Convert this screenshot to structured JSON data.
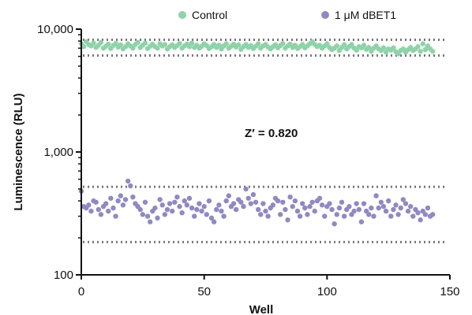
{
  "chart_data": {
    "type": "scatter",
    "title": "",
    "xlabel": "Well",
    "ylabel": "Luminescence (RLU)",
    "xlim": [
      0,
      150
    ],
    "ylim": [
      100,
      10000
    ],
    "yscale": "log",
    "x_ticks": [
      "0",
      "50",
      "100",
      "150"
    ],
    "y_ticks": [
      "100",
      "1,000",
      "10,000"
    ],
    "legend_position": "top-center",
    "annotation": "Z′ = 0.820",
    "colors": {
      "control": "#8fd3a8",
      "dbet1": "#9089c2",
      "threshold": "#777777",
      "axis": "#111111"
    },
    "thresholds": [
      8200,
      6100,
      520,
      185
    ],
    "series": [
      {
        "name": "Control",
        "x": [
          0,
          1,
          2,
          3,
          4,
          5,
          6,
          7,
          8,
          9,
          10,
          11,
          12,
          13,
          14,
          15,
          16,
          17,
          18,
          19,
          20,
          21,
          22,
          23,
          24,
          25,
          26,
          27,
          28,
          29,
          30,
          31,
          32,
          33,
          34,
          35,
          36,
          37,
          38,
          39,
          40,
          41,
          42,
          43,
          44,
          45,
          46,
          47,
          48,
          49,
          50,
          51,
          52,
          53,
          54,
          55,
          56,
          57,
          58,
          59,
          60,
          61,
          62,
          63,
          64,
          65,
          66,
          67,
          68,
          69,
          70,
          71,
          72,
          73,
          74,
          75,
          76,
          77,
          78,
          79,
          80,
          81,
          82,
          83,
          84,
          85,
          86,
          87,
          88,
          89,
          90,
          91,
          92,
          93,
          94,
          95,
          96,
          97,
          98,
          99,
          100,
          101,
          102,
          103,
          104,
          105,
          106,
          107,
          108,
          109,
          110,
          111,
          112,
          113,
          114,
          115,
          116,
          117,
          118,
          119,
          120,
          121,
          122,
          123,
          124,
          125,
          126,
          127,
          128,
          129,
          130,
          131,
          132,
          133,
          134,
          135,
          136,
          137,
          138,
          139,
          140,
          141,
          142,
          143
        ],
        "y": [
          7600,
          7200,
          7900,
          7500,
          7300,
          7700,
          7100,
          7400,
          7800,
          7000,
          7250,
          7550,
          6950,
          7350,
          7650,
          7150,
          7450,
          6900,
          7200,
          7600,
          7300,
          7000,
          7500,
          7800,
          7100,
          7400,
          7700,
          6950,
          7250,
          7550,
          7200,
          7000,
          7600,
          7300,
          7500,
          6900,
          7200,
          7450,
          7100,
          7350,
          7650,
          7000,
          7300,
          7550,
          7200,
          7700,
          7100,
          7400,
          7000,
          7250,
          7600,
          7350,
          6950,
          7200,
          7500,
          7100,
          7400,
          6900,
          7300,
          7600,
          7000,
          7250,
          7550,
          7150,
          7450,
          6850,
          7200,
          7500,
          7100,
          7350,
          6950,
          7250,
          7600,
          7000,
          7300,
          7500,
          7150,
          6900,
          7200,
          7450,
          7050,
          7350,
          7650,
          7000,
          7300,
          7550,
          7100,
          7400,
          6950,
          7200,
          7500,
          7050,
          7300,
          7600,
          7900,
          7500,
          7200,
          7400,
          7000,
          7300,
          7600,
          7100,
          6800,
          7000,
          7300,
          6700,
          7100,
          7450,
          6900,
          7200,
          7500,
          7000,
          6750,
          7200,
          7050,
          7400,
          6850,
          7100,
          6600,
          7000,
          7300,
          6900,
          6700,
          7050,
          6500,
          6900,
          6750,
          7050,
          6550,
          6300,
          6700,
          6900,
          6500,
          6800,
          7100,
          6700,
          6900,
          7200,
          6600,
          7600,
          6800,
          7300,
          6900,
          6600
        ],
        "color": "#8fd3a8"
      },
      {
        "name": "1 μM dBET1",
        "x": [
          0,
          1,
          2,
          3,
          4,
          5,
          6,
          7,
          8,
          9,
          10,
          11,
          12,
          13,
          14,
          15,
          16,
          17,
          18,
          19,
          20,
          21,
          22,
          23,
          24,
          25,
          26,
          27,
          28,
          29,
          30,
          31,
          32,
          33,
          34,
          35,
          36,
          37,
          38,
          39,
          40,
          41,
          42,
          43,
          44,
          45,
          46,
          47,
          48,
          49,
          50,
          51,
          52,
          53,
          54,
          55,
          56,
          57,
          58,
          59,
          60,
          61,
          62,
          63,
          64,
          65,
          66,
          67,
          68,
          69,
          70,
          71,
          72,
          73,
          74,
          75,
          76,
          77,
          78,
          79,
          80,
          81,
          82,
          83,
          84,
          85,
          86,
          87,
          88,
          89,
          90,
          91,
          92,
          93,
          94,
          95,
          96,
          97,
          98,
          99,
          100,
          101,
          102,
          103,
          104,
          105,
          106,
          107,
          108,
          109,
          110,
          111,
          112,
          113,
          114,
          115,
          116,
          117,
          118,
          119,
          120,
          121,
          122,
          123,
          124,
          125,
          126,
          127,
          128,
          129,
          130,
          131,
          132,
          133,
          134,
          135,
          136,
          137,
          138,
          139,
          140,
          141,
          142,
          143
        ],
        "y": [
          480,
          360,
          350,
          370,
          330,
          400,
          390,
          340,
          310,
          360,
          380,
          330,
          420,
          350,
          300,
          400,
          440,
          370,
          410,
          580,
          530,
          430,
          380,
          360,
          340,
          310,
          390,
          300,
          270,
          330,
          350,
          290,
          410,
          370,
          310,
          340,
          380,
          330,
          390,
          430,
          360,
          320,
          400,
          370,
          420,
          350,
          300,
          340,
          380,
          330,
          360,
          310,
          400,
          290,
          270,
          340,
          370,
          330,
          300,
          400,
          440,
          360,
          380,
          340,
          410,
          390,
          360,
          500,
          420,
          380,
          450,
          390,
          340,
          310,
          380,
          330,
          300,
          350,
          370,
          420,
          400,
          310,
          390,
          340,
          280,
          430,
          360,
          400,
          330,
          300,
          380,
          350,
          310,
          360,
          390,
          330,
          400,
          420,
          370,
          300,
          360,
          380,
          340,
          260,
          310,
          350,
          390,
          300,
          340,
          360,
          310,
          330,
          380,
          340,
          270,
          380,
          330,
          310,
          350,
          300,
          440,
          350,
          390,
          360,
          330,
          400,
          300,
          340,
          370,
          310,
          350,
          410,
          380,
          330,
          360,
          300,
          340,
          320,
          280,
          330,
          310,
          350,
          300,
          310
        ]
      }
    ]
  }
}
